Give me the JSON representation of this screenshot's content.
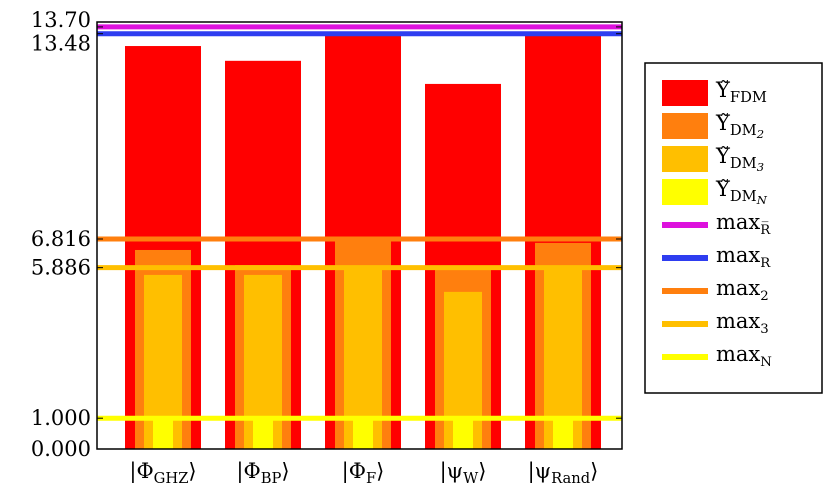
{
  "chart_data": {
    "type": "bar",
    "categories": [
      {
        "pre": "|Φ",
        "sub": "GHZ",
        "post": "⟩"
      },
      {
        "pre": "|Φ",
        "sub": "BP",
        "post": "⟩"
      },
      {
        "pre": "|Φ",
        "sub": "F",
        "post": "⟩"
      },
      {
        "pre": "|ψ",
        "sub": "W",
        "post": "⟩"
      },
      {
        "pre": "|ψ",
        "sub": "Rand",
        "post": "⟩"
      }
    ],
    "series": [
      {
        "name": {
          "base": "Υ̃",
          "sub": "FDM"
        },
        "color": "#ff0000",
        "values": [
          13.08,
          12.6,
          13.41,
          11.85,
          13.41
        ]
      },
      {
        "name": {
          "base": "Υ̃",
          "sub": "DM",
          "subsub": "2"
        },
        "color": "#ff7f0e",
        "values": [
          6.46,
          5.97,
          6.85,
          5.88,
          6.69
        ]
      },
      {
        "name": {
          "base": "Υ̃",
          "sub": "DM",
          "subsub": "3"
        },
        "color": "#ffbf00",
        "values": [
          5.65,
          5.65,
          5.88,
          5.1,
          5.88
        ]
      },
      {
        "name": {
          "base": "Υ̃",
          "sub": "DM",
          "subsub": "N"
        },
        "color": "#ffff00",
        "values": [
          1.0,
          1.0,
          1.0,
          1.0,
          1.0
        ]
      }
    ],
    "hlines": [
      {
        "name": {
          "base": "max",
          "sub": "R̅"
        },
        "color": "#dd11dd",
        "value": 13.7
      },
      {
        "name": {
          "base": "max",
          "sub": "R"
        },
        "color": "#2e3df0",
        "value": 13.48
      },
      {
        "name": {
          "base": "max",
          "sub": "2"
        },
        "color": "#ff7f0e",
        "value": 6.816
      },
      {
        "name": {
          "base": "max",
          "sub": "3"
        },
        "color": "#ffbf00",
        "value": 5.886
      },
      {
        "name": {
          "base": "max",
          "sub": "N"
        },
        "color": "#ffff00",
        "value": 1.0
      }
    ],
    "ylim": [
      0,
      13.86
    ],
    "yticks": [
      {
        "value": 0,
        "label": "0.000"
      },
      {
        "value": 1,
        "label": "1.000"
      },
      5.886,
      6.816,
      13.48,
      {
        "value": 13.7,
        "label": "13.70"
      }
    ],
    "legend": "right"
  }
}
